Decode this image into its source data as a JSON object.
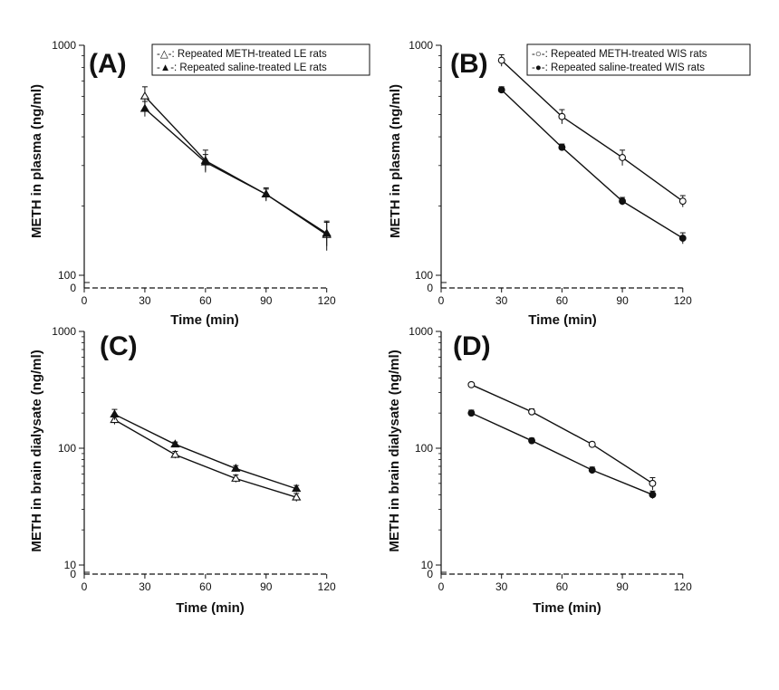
{
  "figure_title": "",
  "colors": {
    "ink": "#111111",
    "background": "#ffffff",
    "hollow_fill": "#ffffff"
  },
  "chart_data": [
    {
      "panel_id": "A",
      "panel_letter": "(A)",
      "type": "line",
      "xlabel": "Time (min)",
      "ylabel": "METH in plasma (ng/ml)",
      "xlim": [
        0,
        130
      ],
      "ylim": [
        100,
        1000
      ],
      "yscale": "log",
      "x_ticks": [
        0,
        30,
        60,
        90,
        120
      ],
      "x_tick_labels": [
        "0",
        "30",
        "60",
        "90",
        "120"
      ],
      "y_ticks": [
        100,
        1000
      ],
      "y_tick_labels": [
        "100",
        "1000"
      ],
      "y_zero_label": "0",
      "legend_position": "top-right",
      "legend_items": [
        {
          "label": "-△-: Repeated METH-treated LE rats",
          "series": "0"
        },
        {
          "label": "-▲-: Repeated saline-treated LE rats",
          "series": "1"
        }
      ],
      "series": [
        {
          "marker": "triangle-open",
          "x": [
            30,
            60,
            90,
            120
          ],
          "y": [
            600,
            315,
            225,
            150
          ],
          "err": [
            60,
            35,
            15,
            22
          ]
        },
        {
          "marker": "triangle-filled",
          "x": [
            30,
            60,
            90,
            120
          ],
          "y": [
            530,
            310,
            225,
            152
          ],
          "err": [
            40,
            25,
            12,
            18
          ]
        }
      ]
    },
    {
      "panel_id": "B",
      "panel_letter": "(B)",
      "type": "line",
      "xlabel": "Time (min)",
      "ylabel": "METH in plasma (ng/ml)",
      "xlim": [
        0,
        130
      ],
      "ylim": [
        100,
        1000
      ],
      "yscale": "log",
      "x_ticks": [
        0,
        30,
        60,
        90,
        120
      ],
      "x_tick_labels": [
        "0",
        "30",
        "60",
        "90",
        "120"
      ],
      "y_ticks": [
        100,
        1000
      ],
      "y_tick_labels": [
        "100",
        "1000"
      ],
      "y_zero_label": "0",
      "legend_position": "top-right",
      "legend_items": [
        {
          "label": "-○-: Repeated METH-treated WIS rats",
          "series": "0"
        },
        {
          "label": "-●-: Repeated saline-treated WIS rats",
          "series": "1"
        }
      ],
      "series": [
        {
          "marker": "circle-open",
          "x": [
            30,
            60,
            90,
            120
          ],
          "y": [
            860,
            490,
            325,
            210
          ],
          "err": [
            50,
            35,
            25,
            12
          ]
        },
        {
          "marker": "circle-filled",
          "x": [
            30,
            60,
            90,
            120
          ],
          "y": [
            640,
            360,
            210,
            145
          ],
          "err": [
            20,
            12,
            8,
            8
          ]
        }
      ]
    },
    {
      "panel_id": "C",
      "panel_letter": "(C)",
      "type": "line",
      "xlabel": "Time (min)",
      "ylabel": "METH in brain dialysate (ng/ml)",
      "xlim": [
        0,
        130
      ],
      "ylim": [
        10,
        1000
      ],
      "yscale": "log",
      "x_ticks": [
        0,
        30,
        60,
        90,
        120
      ],
      "x_tick_labels": [
        "0",
        "30",
        "60",
        "90",
        "120"
      ],
      "y_ticks": [
        10,
        100,
        1000
      ],
      "y_tick_labels": [
        "10",
        "100",
        "1000"
      ],
      "y_zero_label": "0",
      "legend_position": "",
      "legend_items": [],
      "series": [
        {
          "marker": "triangle-open",
          "x": [
            15,
            45,
            75,
            105
          ],
          "y": [
            175,
            88,
            55,
            38
          ],
          "err": [
            15,
            6,
            4,
            3
          ]
        },
        {
          "marker": "triangle-filled",
          "x": [
            15,
            45,
            75,
            105
          ],
          "y": [
            195,
            108,
            67,
            45
          ],
          "err": [
            20,
            5,
            4,
            3
          ]
        }
      ]
    },
    {
      "panel_id": "D",
      "panel_letter": "(D)",
      "type": "line",
      "xlabel": "Time (min)",
      "ylabel": "METH in brain dialysate (ng/ml)",
      "xlim": [
        0,
        130
      ],
      "ylim": [
        10,
        1000
      ],
      "yscale": "log",
      "x_ticks": [
        0,
        30,
        60,
        90,
        120
      ],
      "x_tick_labels": [
        "0",
        "30",
        "60",
        "90",
        "120"
      ],
      "y_ticks": [
        10,
        100,
        1000
      ],
      "y_tick_labels": [
        "10",
        "100",
        "1000"
      ],
      "y_zero_label": "0",
      "legend_position": "",
      "legend_items": [],
      "series": [
        {
          "marker": "circle-open",
          "x": [
            15,
            45,
            75,
            105
          ],
          "y": [
            350,
            205,
            108,
            50
          ],
          "err": [
            15,
            12,
            5,
            6
          ]
        },
        {
          "marker": "circle-filled",
          "x": [
            15,
            45,
            75,
            105
          ],
          "y": [
            200,
            116,
            65,
            40
          ],
          "err": [
            12,
            6,
            4,
            3
          ]
        }
      ]
    }
  ]
}
